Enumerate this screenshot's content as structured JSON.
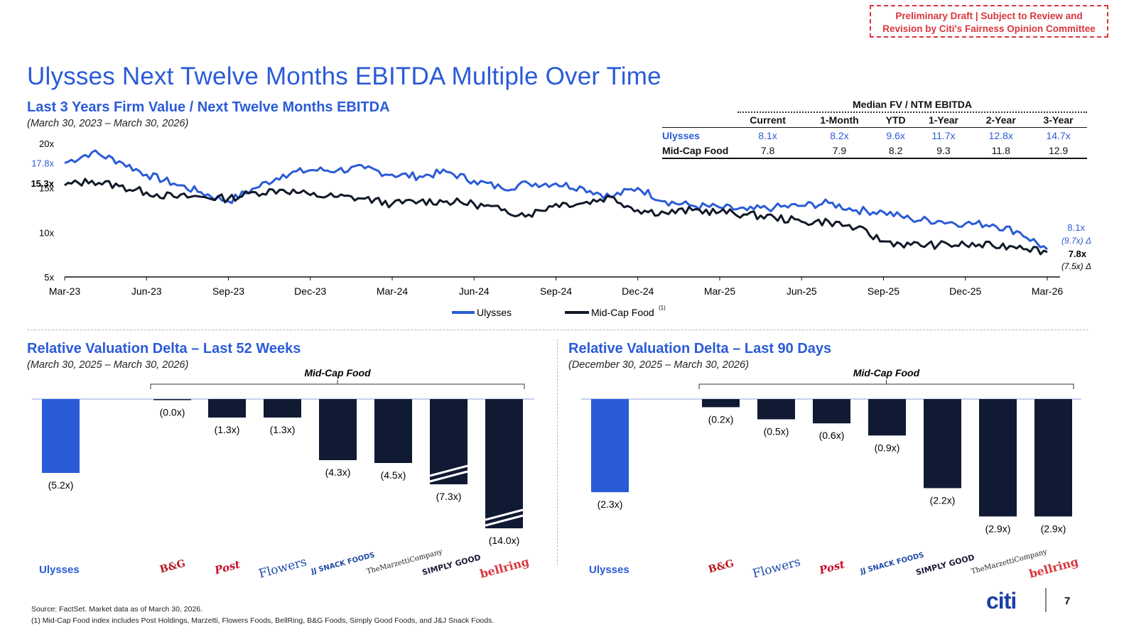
{
  "draft_notice": [
    "Preliminary Draft | Subject to Review and",
    "Revision by Citi's Fairness Opinion Committee"
  ],
  "page_title": "Ulysses Next Twelve Months EBITDA Multiple Over Time",
  "page_number": "7",
  "brand": "citi",
  "colors": {
    "ulysses": "#2a5bd7",
    "midcap": "#111827",
    "accent": "#2a5bd7",
    "draft": "#d9363e"
  },
  "top_section": {
    "subtitle": "Last 3 Years Firm Value / Next Twelve Months EBITDA",
    "date_range": "(March 30, 2023 – March 30, 2026)"
  },
  "median_table": {
    "title": "Median FV / NTM EBITDA",
    "columns": [
      "Current",
      "1-Month",
      "YTD",
      "1-Year",
      "2-Year",
      "3-Year"
    ],
    "rows": [
      {
        "label": "Ulysses",
        "values": [
          "8.1x",
          "8.2x",
          "9.6x",
          "11.7x",
          "12.8x",
          "14.7x"
        ]
      },
      {
        "label": "Mid-Cap Food",
        "values": [
          "7.8",
          "7.9",
          "8.2",
          "9.3",
          "11.8",
          "12.9"
        ]
      }
    ]
  },
  "legend": {
    "ulysses": "Ulysses",
    "midcap": "Mid-Cap Food",
    "midcap_sup": "(1)"
  },
  "bottom_left": {
    "subtitle": "Relative Valuation Delta – Last 52 Weeks",
    "date_range": "(March 30, 2025 – March 30, 2026)",
    "group_label": "Mid-Cap Food",
    "company_label": "Ulysses"
  },
  "bottom_right": {
    "subtitle": "Relative Valuation Delta – Last 90 Days",
    "date_range": "(December 30, 2025 – March 30, 2026)",
    "group_label": "Mid-Cap Food",
    "company_label": "Ulysses"
  },
  "footnotes": [
    "Source: FactSet. Market data as of March 30, 2026.",
    "(1) Mid-Cap Food index includes Post Holdings, Marzetti, Flowers Foods, BellRing, B&G Foods, Simply Good Foods, and J&J Snack Foods."
  ],
  "chart_data": [
    {
      "type": "line",
      "x_ticks": [
        "Mar-23",
        "Jun-23",
        "Sep-23",
        "Dec-23",
        "Mar-24",
        "Jun-24",
        "Sep-24",
        "Dec-24",
        "Mar-25",
        "Jun-25",
        "Sep-25",
        "Dec-25",
        "Mar-26"
      ],
      "y_ticks": [
        "5x",
        "10x",
        "15x",
        "20x"
      ],
      "ylim": [
        5,
        20
      ],
      "x": [
        "2023-03",
        "2023-04",
        "2023-05",
        "2023-06",
        "2023-07",
        "2023-08",
        "2023-09",
        "2023-10",
        "2023-11",
        "2023-12",
        "2024-01",
        "2024-02",
        "2024-03",
        "2024-04",
        "2024-05",
        "2024-06",
        "2024-07",
        "2024-08",
        "2024-09",
        "2024-10",
        "2024-11",
        "2024-12",
        "2025-01",
        "2025-02",
        "2025-03",
        "2025-04",
        "2025-05",
        "2025-06",
        "2025-07",
        "2025-08",
        "2025-09",
        "2025-10",
        "2025-11",
        "2025-12",
        "2026-01",
        "2026-02",
        "2026-03"
      ],
      "series": [
        {
          "name": "Ulysses",
          "values": [
            17.8,
            19.0,
            18.0,
            16.5,
            15.5,
            14.5,
            13.5,
            15.0,
            16.5,
            17.0,
            17.0,
            17.2,
            16.5,
            16.3,
            16.8,
            15.8,
            15.0,
            15.5,
            15.5,
            15.0,
            14.0,
            15.0,
            13.5,
            13.0,
            12.8,
            12.5,
            12.8,
            13.0,
            13.3,
            12.5,
            12.3,
            11.5,
            11.3,
            11.0,
            10.9,
            10.0,
            8.1
          ]
        },
        {
          "name": "Mid-Cap Food",
          "values": [
            15.3,
            15.8,
            15.2,
            14.5,
            14.0,
            14.0,
            13.8,
            14.5,
            14.8,
            14.2,
            14.0,
            13.8,
            13.2,
            13.5,
            13.5,
            13.2,
            12.5,
            12.0,
            13.2,
            13.3,
            14.0,
            12.5,
            12.2,
            12.5,
            12.3,
            12.0,
            11.7,
            11.2,
            11.2,
            10.5,
            9.0,
            8.6,
            8.6,
            8.6,
            8.5,
            8.5,
            7.8
          ]
        }
      ],
      "end_labels": {
        "ulysses": "8.1x",
        "ulysses_delta": "(9.7x) Δ",
        "midcap": "7.8x",
        "midcap_delta": "(7.5x) Δ"
      },
      "start_labels": {
        "ulysses": "17.8x",
        "midcap": "15.3x"
      }
    },
    {
      "type": "bar",
      "categories": [
        "Ulysses",
        "B&G Foods",
        "Post",
        "Flowers Foods",
        "J&J Snack Foods",
        "The Marzetti Company",
        "Simply Good",
        "BellRing"
      ],
      "values": [
        -5.2,
        -0.0,
        -1.3,
        -1.3,
        -4.3,
        -4.5,
        -7.3,
        -14.0
      ],
      "labels": [
        "(5.2x)",
        "(0.0x)",
        "(1.3x)",
        "(1.3x)",
        "(4.3x)",
        "(4.5x)",
        "(7.3x)",
        "(14.0x)"
      ]
    },
    {
      "type": "bar",
      "categories": [
        "Ulysses",
        "B&G Foods",
        "Flowers Foods",
        "Post",
        "J&J Snack Foods",
        "Simply Good",
        "The Marzetti Company",
        "BellRing"
      ],
      "values": [
        -2.3,
        -0.2,
        -0.5,
        -0.6,
        -0.9,
        -2.2,
        -2.9,
        -2.9
      ],
      "labels": [
        "(2.3x)",
        "(0.2x)",
        "(0.5x)",
        "(0.6x)",
        "(0.9x)",
        "(2.2x)",
        "(2.9x)",
        "(2.9x)"
      ]
    }
  ]
}
